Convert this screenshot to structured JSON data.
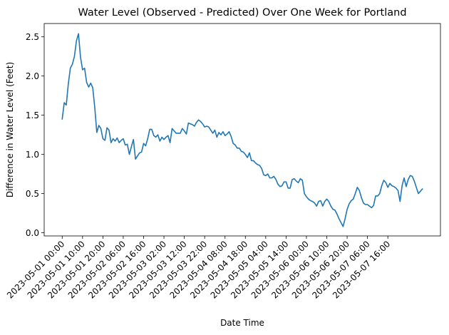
{
  "chart_data": {
    "type": "line",
    "title": "Water Level (Observed - Predicted) Over One Week for Portland",
    "xlabel": "Date Time",
    "ylabel": "Difference in Water Level (Feet)",
    "x_start": "2023-05-01 00:00",
    "x_step_hours": 1,
    "x_ticks": [
      "2023-05-01 00:00",
      "2023-05-01 10:00",
      "2023-05-01 20:00",
      "2023-05-02 06:00",
      "2023-05-02 16:00",
      "2023-05-03 02:00",
      "2023-05-03 12:00",
      "2023-05-03 22:00",
      "2023-05-04 08:00",
      "2023-05-04 18:00",
      "2023-05-05 04:00",
      "2023-05-05 14:00",
      "2023-05-06 00:00",
      "2023-05-06 10:00",
      "2023-05-06 20:00",
      "2023-05-07 06:00",
      "2023-05-07 16:00"
    ],
    "y_ticks": [
      "0.0",
      "0.5",
      "1.0",
      "1.5",
      "2.0",
      "2.5"
    ],
    "ylim": [
      -0.04,
      2.67
    ],
    "color": "#1f77b4",
    "series": [
      {
        "values": [
          1.45,
          1.66,
          1.63,
          1.9,
          2.1,
          2.15,
          2.25,
          2.45,
          2.54,
          2.24,
          2.08,
          2.1,
          1.92,
          1.86,
          1.91,
          1.85,
          1.6,
          1.28,
          1.37,
          1.33,
          1.2,
          1.18,
          1.34,
          1.31,
          1.15,
          1.2,
          1.17,
          1.21,
          1.15,
          1.18,
          1.2,
          1.12,
          1.13,
          1.0,
          1.1,
          1.19,
          0.94,
          0.98,
          1.02,
          1.03,
          1.14,
          1.11,
          1.2,
          1.32,
          1.32,
          1.24,
          1.22,
          1.25,
          1.17,
          1.22,
          1.19,
          1.22,
          1.24,
          1.15,
          1.33,
          1.3,
          1.27,
          1.27,
          1.27,
          1.33,
          1.3,
          1.26,
          1.4,
          1.39,
          1.38,
          1.36,
          1.41,
          1.44,
          1.42,
          1.39,
          1.35,
          1.36,
          1.35,
          1.31,
          1.27,
          1.31,
          1.22,
          1.28,
          1.25,
          1.29,
          1.24,
          1.26,
          1.29,
          1.23,
          1.14,
          1.12,
          1.08,
          1.08,
          1.04,
          1.03,
          1.0,
          0.96,
          1.02,
          0.92,
          0.92,
          0.89,
          0.87,
          0.86,
          0.82,
          0.74,
          0.73,
          0.75,
          0.7,
          0.7,
          0.72,
          0.68,
          0.62,
          0.59,
          0.6,
          0.65,
          0.65,
          0.57,
          0.57,
          0.68,
          0.69,
          0.66,
          0.64,
          0.69,
          0.67,
          0.5,
          0.46,
          0.43,
          0.41,
          0.4,
          0.38,
          0.34,
          0.4,
          0.41,
          0.34,
          0.4,
          0.43,
          0.4,
          0.34,
          0.3,
          0.29,
          0.24,
          0.18,
          0.13,
          0.08,
          0.18,
          0.3,
          0.37,
          0.41,
          0.43,
          0.5,
          0.58,
          0.54,
          0.45,
          0.38,
          0.36,
          0.36,
          0.34,
          0.32,
          0.35,
          0.47,
          0.47,
          0.5,
          0.6,
          0.67,
          0.64,
          0.58,
          0.63,
          0.6,
          0.59,
          0.57,
          0.54,
          0.4,
          0.6,
          0.7,
          0.59,
          0.68,
          0.73,
          0.72,
          0.66,
          0.58,
          0.5,
          0.53,
          0.56
        ]
      }
    ]
  }
}
